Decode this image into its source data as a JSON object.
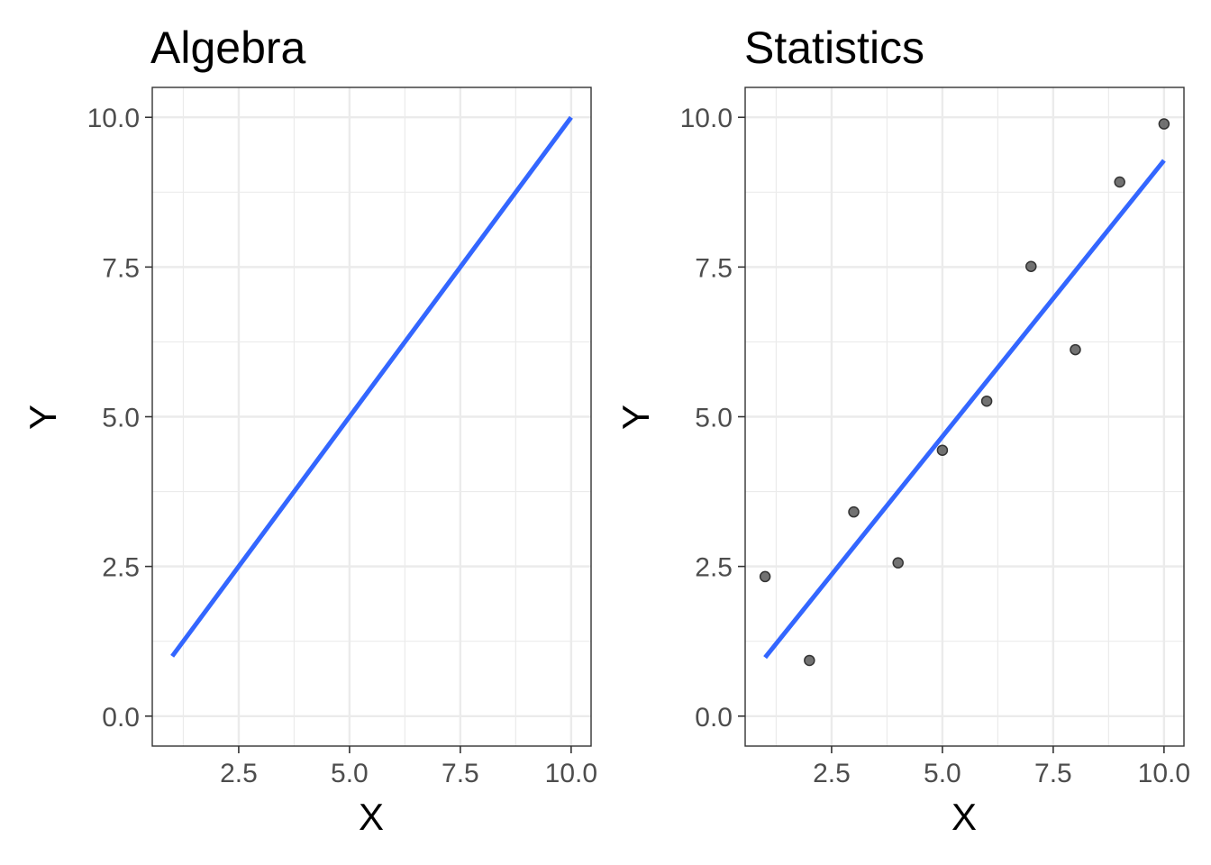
{
  "chart_data": [
    {
      "type": "line",
      "title": "Algebra",
      "xlabel": "X",
      "ylabel": "Y",
      "xlim": [
        0.55,
        10.45
      ],
      "ylim": [
        -0.5,
        10.5
      ],
      "xticks": [
        "2.5",
        "5.0",
        "7.5",
        "10.0"
      ],
      "yticks": [
        "0.0",
        "2.5",
        "5.0",
        "7.5",
        "10.0"
      ],
      "grid": true,
      "series": [
        {
          "x": [
            1,
            10
          ],
          "y": [
            1,
            10
          ],
          "color": "#3366FF"
        }
      ]
    },
    {
      "type": "scatter",
      "title": "Statistics",
      "xlabel": "X",
      "ylabel": "Y",
      "xlim": [
        0.55,
        10.45
      ],
      "ylim": [
        -0.5,
        10.5
      ],
      "xticks": [
        "2.5",
        "5.0",
        "7.5",
        "10.0"
      ],
      "yticks": [
        "0.0",
        "2.5",
        "5.0",
        "7.5",
        "10.0"
      ],
      "grid": true,
      "points": {
        "x": [
          1,
          2,
          3,
          4,
          5,
          6,
          7,
          8,
          9,
          10
        ],
        "y": [
          2.33,
          0.93,
          3.41,
          2.56,
          4.44,
          5.26,
          7.51,
          6.12,
          8.92,
          9.89
        ],
        "color": "#595959"
      },
      "fit_line": {
        "x": [
          1,
          10
        ],
        "y": [
          0.98,
          9.28
        ],
        "color": "#3366FF"
      }
    }
  ]
}
